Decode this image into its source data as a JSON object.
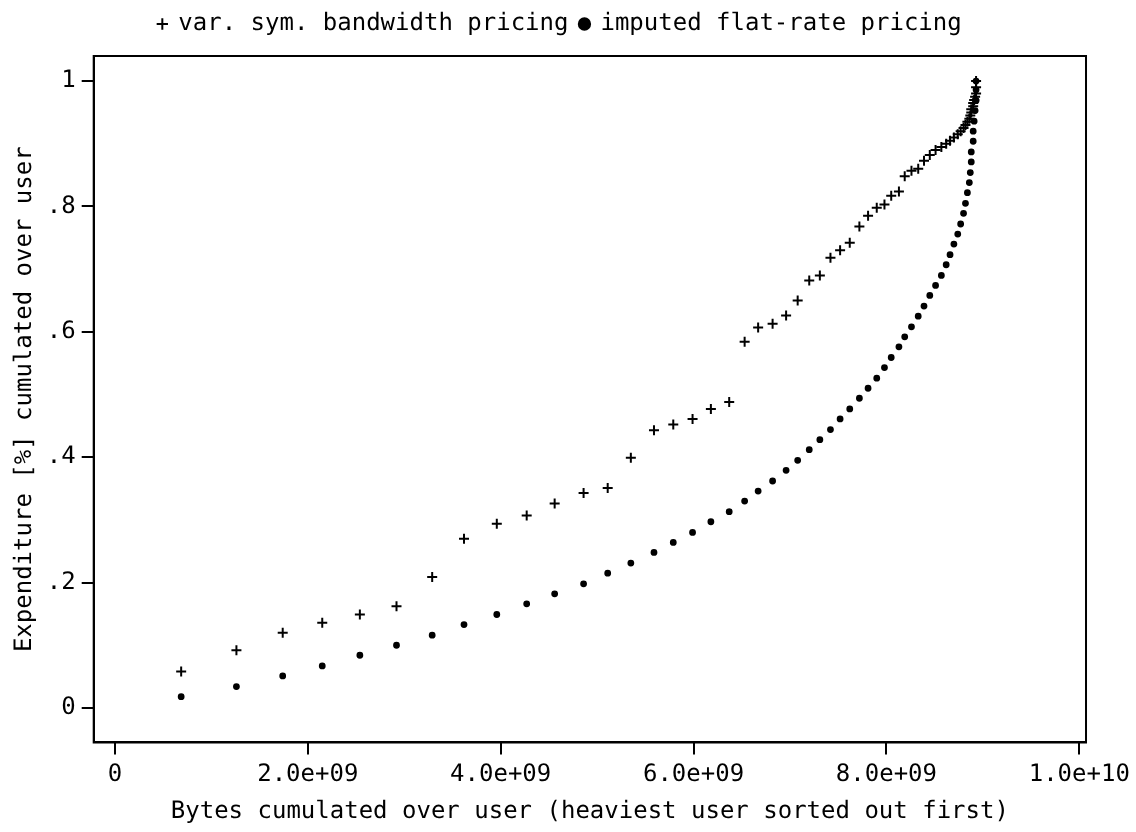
{
  "chart_data": {
    "type": "scatter",
    "xlabel": "Bytes cumulated over user (heaviest user sorted out first)",
    "ylabel": "Expenditure [%] cumulated over user",
    "x": [
      687000000.0,
      1260000000.0,
      1740000000.0,
      2150000000.0,
      2540000000.0,
      2920000000.0,
      3290000000.0,
      3620000000.0,
      3960000000.0,
      4270000000.0,
      4560000000.0,
      4860000000.0,
      5110000000.0,
      5350000000.0,
      5590000000.0,
      5790000000.0,
      5990000000.0,
      6180000000.0,
      6370000000.0,
      6530000000.0,
      6670000000.0,
      6820000000.0,
      6960000000.0,
      7080000000.0,
      7200000000.0,
      7310000000.0,
      7420000000.0,
      7520000000.0,
      7620000000.0,
      7720000000.0,
      7810000000.0,
      7900000000.0,
      7980000000.0,
      8050000000.0,
      8130000000.0,
      8190000000.0,
      8260000000.0,
      8330000000.0,
      8390000000.0,
      8450000000.0,
      8510000000.0,
      8570000000.0,
      8620000000.0,
      8660000000.0,
      8700000000.0,
      8740000000.0,
      8770000000.0,
      8800000000.0,
      8820000000.0,
      8840000000.0,
      8860000000.0,
      8870000000.0,
      8880000000.0,
      8880000000.0,
      8900000000.0,
      8900000000.0,
      8910000000.0,
      8920000000.0,
      8930000000.0,
      8930000000.0,
      8930000000.0
    ],
    "series": [
      {
        "name": "var. sym. bandwidth pricing",
        "color": "#000000",
        "marker": "cross",
        "values": [
          0.058,
          0.092,
          0.12,
          0.136,
          0.149,
          0.162,
          0.209,
          0.27,
          0.294,
          0.307,
          0.326,
          0.343,
          0.351,
          0.399,
          0.443,
          0.452,
          0.461,
          0.477,
          0.488,
          0.584,
          0.607,
          0.613,
          0.626,
          0.65,
          0.682,
          0.69,
          0.718,
          0.73,
          0.742,
          0.768,
          0.785,
          0.798,
          0.803,
          0.817,
          0.824,
          0.848,
          0.857,
          0.86,
          0.873,
          0.882,
          0.89,
          0.895,
          0.9,
          0.905,
          0.91,
          0.915,
          0.92,
          0.925,
          0.93,
          0.935,
          0.94,
          0.945,
          0.95,
          0.955,
          0.96,
          0.965,
          0.97,
          0.975,
          0.98,
          0.99,
          1.0
        ]
      },
      {
        "name": "imputed flat-rate pricing",
        "color": "#000000",
        "marker": "circle",
        "values": [
          0.018,
          0.034,
          0.051,
          0.067,
          0.084,
          0.1,
          0.116,
          0.133,
          0.149,
          0.166,
          0.182,
          0.198,
          0.215,
          0.231,
          0.248,
          0.264,
          0.28,
          0.297,
          0.313,
          0.33,
          0.346,
          0.362,
          0.379,
          0.395,
          0.412,
          0.428,
          0.444,
          0.461,
          0.477,
          0.494,
          0.51,
          0.526,
          0.543,
          0.559,
          0.576,
          0.592,
          0.608,
          0.625,
          0.641,
          0.658,
          0.674,
          0.69,
          0.707,
          0.723,
          0.74,
          0.756,
          0.772,
          0.789,
          0.805,
          0.822,
          0.838,
          0.854,
          0.871,
          0.887,
          0.904,
          0.92,
          0.936,
          0.953,
          0.969,
          0.986,
          1.0
        ]
      }
    ],
    "xlim": [
      -220000000.0,
      10070000000.0
    ],
    "xticks": [
      {
        "value": 0,
        "label": "0"
      },
      {
        "value": 2000000000.0,
        "label": "2.0e+09"
      },
      {
        "value": 4000000000.0,
        "label": "4.0e+09"
      },
      {
        "value": 6000000000.0,
        "label": "6.0e+09"
      },
      {
        "value": 8000000000.0,
        "label": "8.0e+09"
      },
      {
        "value": 10000000000.0,
        "label": "1.0e+10"
      }
    ],
    "ylim": [
      -0.055,
      1.04
    ],
    "yticks": [
      {
        "value": 0,
        "label": "0"
      },
      {
        "value": 0.2,
        "label": ".2"
      },
      {
        "value": 0.4,
        "label": ".4"
      },
      {
        "value": 0.6,
        "label": ".6"
      },
      {
        "value": 0.8,
        "label": ".8"
      },
      {
        "value": 1,
        "label": "1"
      }
    ],
    "grid": false,
    "legend": "top"
  }
}
